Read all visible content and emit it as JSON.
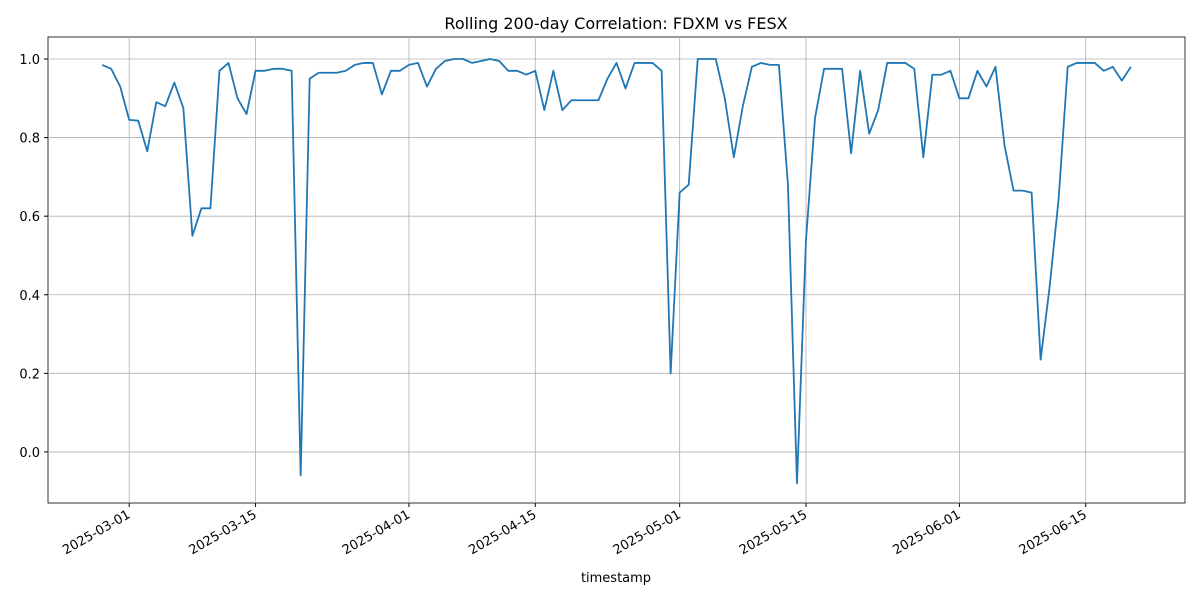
{
  "chart_data": {
    "type": "line",
    "title": "Rolling 200-day Correlation: FDXM vs FESX",
    "xlabel": "timestamp",
    "x": [
      "2025-02-26",
      "2025-02-27",
      "2025-02-28",
      "2025-03-01",
      "2025-03-02",
      "2025-03-03",
      "2025-03-04",
      "2025-03-05",
      "2025-03-06",
      "2025-03-07",
      "2025-03-08",
      "2025-03-09",
      "2025-03-10",
      "2025-03-11",
      "2025-03-12",
      "2025-03-13",
      "2025-03-14",
      "2025-03-15",
      "2025-03-16",
      "2025-03-17",
      "2025-03-18",
      "2025-03-19",
      "2025-03-20",
      "2025-03-21",
      "2025-03-22",
      "2025-03-23",
      "2025-03-24",
      "2025-03-25",
      "2025-03-26",
      "2025-03-27",
      "2025-03-28",
      "2025-03-29",
      "2025-03-30",
      "2025-03-31",
      "2025-04-01",
      "2025-04-02",
      "2025-04-03",
      "2025-04-04",
      "2025-04-05",
      "2025-04-06",
      "2025-04-07",
      "2025-04-08",
      "2025-04-09",
      "2025-04-10",
      "2025-04-11",
      "2025-04-12",
      "2025-04-13",
      "2025-04-14",
      "2025-04-15",
      "2025-04-16",
      "2025-04-17",
      "2025-04-18",
      "2025-04-19",
      "2025-04-20",
      "2025-04-21",
      "2025-04-22",
      "2025-04-23",
      "2025-04-24",
      "2025-04-25",
      "2025-04-26",
      "2025-04-27",
      "2025-04-28",
      "2025-04-29",
      "2025-04-30",
      "2025-05-01",
      "2025-05-02",
      "2025-05-03",
      "2025-05-04",
      "2025-05-05",
      "2025-05-06",
      "2025-05-07",
      "2025-05-08",
      "2025-05-09",
      "2025-05-10",
      "2025-05-11",
      "2025-05-12",
      "2025-05-13",
      "2025-05-14",
      "2025-05-15",
      "2025-05-16",
      "2025-05-17",
      "2025-05-18",
      "2025-05-19",
      "2025-05-20",
      "2025-05-21",
      "2025-05-22",
      "2025-05-23",
      "2025-05-24",
      "2025-05-25",
      "2025-05-26",
      "2025-05-27",
      "2025-05-28",
      "2025-05-29",
      "2025-05-30",
      "2025-05-31",
      "2025-06-01",
      "2025-06-02",
      "2025-06-03",
      "2025-06-04",
      "2025-06-05",
      "2025-06-06",
      "2025-06-07",
      "2025-06-08",
      "2025-06-09",
      "2025-06-10",
      "2025-06-11",
      "2025-06-12",
      "2025-06-13",
      "2025-06-14",
      "2025-06-15",
      "2025-06-16",
      "2025-06-17",
      "2025-06-18",
      "2025-06-19",
      "2025-06-20"
    ],
    "series": [
      {
        "color": "#1f77b4",
        "values": [
          0.985,
          0.975,
          0.93,
          0.845,
          0.843,
          0.765,
          0.89,
          0.88,
          0.94,
          0.875,
          0.55,
          0.62,
          0.62,
          0.97,
          0.99,
          0.9,
          0.86,
          0.97,
          0.97,
          0.975,
          0.975,
          0.97,
          -0.06,
          0.95,
          0.965,
          0.965,
          0.965,
          0.97,
          0.985,
          0.99,
          0.99,
          0.91,
          0.97,
          0.97,
          0.985,
          0.99,
          0.93,
          0.975,
          0.995,
          1.0,
          1.0,
          0.99,
          0.995,
          1.0,
          0.995,
          0.97,
          0.97,
          0.96,
          0.97,
          0.87,
          0.97,
          0.87,
          0.895,
          0.895,
          0.895,
          0.895,
          0.95,
          0.99,
          0.925,
          0.99,
          0.99,
          0.99,
          0.97,
          0.2,
          0.66,
          0.68,
          1.0,
          1.0,
          1.0,
          0.9,
          0.75,
          0.88,
          0.98,
          0.99,
          0.985,
          0.985,
          0.68,
          -0.08,
          0.54,
          0.85,
          0.975,
          0.975,
          0.975,
          0.76,
          0.97,
          0.81,
          0.87,
          0.99,
          0.99,
          0.99,
          0.975,
          0.75,
          0.96,
          0.96,
          0.97,
          0.9,
          0.9,
          0.97,
          0.93,
          0.98,
          0.78,
          0.665,
          0.665,
          0.66,
          0.235,
          0.42,
          0.645,
          0.98,
          0.99,
          0.99,
          0.99,
          0.97,
          0.98,
          0.945,
          0.98
        ]
      }
    ],
    "xlim": [
      "2025-02-20",
      "2025-06-26"
    ],
    "xticks": [
      "2025-03-01",
      "2025-03-15",
      "2025-04-01",
      "2025-04-15",
      "2025-05-01",
      "2025-05-15",
      "2025-06-01",
      "2025-06-15"
    ],
    "ylim": [
      -0.13,
      1.056
    ],
    "yticks": [
      {
        "value": 0,
        "label": "0.0"
      },
      {
        "value": 0.2,
        "label": "0.2"
      },
      {
        "value": 0.4,
        "label": "0.4"
      },
      {
        "value": 0.6,
        "label": "0.6"
      },
      {
        "value": 0.8,
        "label": "0.8"
      },
      {
        "value": 1,
        "label": "1.0"
      }
    ],
    "grid": true
  }
}
